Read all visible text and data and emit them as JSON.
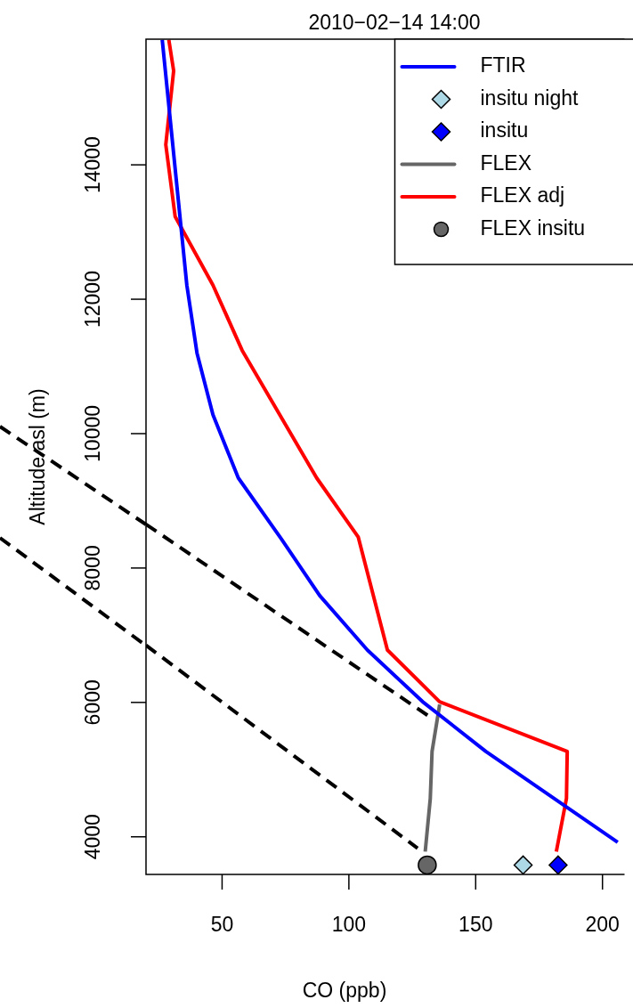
{
  "chart_data": {
    "type": "line",
    "title": "2010−02−14 14:00",
    "xlabel": "CO (ppb)",
    "ylabel": "Altitude asl (m)",
    "xlim": [
      20,
      208
    ],
    "xticks": [
      50,
      100,
      150,
      200
    ],
    "ylim": [
      3440,
      15870
    ],
    "yticks": [
      4000,
      6000,
      8000,
      10000,
      12000,
      14000
    ],
    "legend": "top right",
    "grid": false,
    "series": [
      {
        "name": "FTIR",
        "color": "#0000ff",
        "marker": "none",
        "x": [
          26.4,
          36.1,
          40.1,
          46.4,
          56.4,
          73.4,
          88.5,
          107.3,
          129.1,
          154,
          206
        ],
        "values": [
          15860,
          12210,
          11200,
          10280,
          9340,
          8430,
          7590,
          6780,
          6010,
          5270,
          3920
        ]
      },
      {
        "name": "insitu night",
        "type": "scatter",
        "color": "#add8e6",
        "marker": "diamond",
        "x": [
          168.7
        ],
        "values": [
          3580
        ]
      },
      {
        "name": "insitu",
        "type": "scatter",
        "color": "#0000ff",
        "marker": "diamond",
        "x": [
          182.5
        ],
        "values": [
          3580
        ]
      },
      {
        "name": "FLEX",
        "color": "#666666",
        "marker": "none",
        "x": [
          135.8,
          132.8,
          132.1,
          130.1
        ],
        "values": [
          5970,
          5270,
          4570,
          3780
        ]
      },
      {
        "name": "FLEX adj",
        "color": "#ff0000",
        "marker": "none",
        "x": [
          29,
          30.9,
          27.8,
          31.5,
          46.4,
          57.9,
          87.3,
          103.7,
          115.2,
          135.8,
          186.1,
          185.8,
          181.8
        ],
        "values": [
          15860,
          15400,
          14300,
          13230,
          12210,
          11240,
          9340,
          8460,
          6780,
          6010,
          5270,
          4570,
          3780
        ]
      },
      {
        "type": "line",
        "color": "#000000",
        "line_style": "dashed",
        "marker": "none",
        "x": [
          20,
          133.3
        ],
        "values": [
          8650,
          5750
        ]
      },
      {
        "type": "line",
        "color": "#000000",
        "line_style": "dashed",
        "marker": "none",
        "x": [
          20,
          127.1
        ],
        "values": [
          6850,
          3830
        ]
      },
      {
        "name": "FLEX insitu",
        "type": "scatter",
        "color": "#666666",
        "marker": "circle",
        "x": [
          130.9
        ],
        "values": [
          3580
        ]
      }
    ]
  }
}
